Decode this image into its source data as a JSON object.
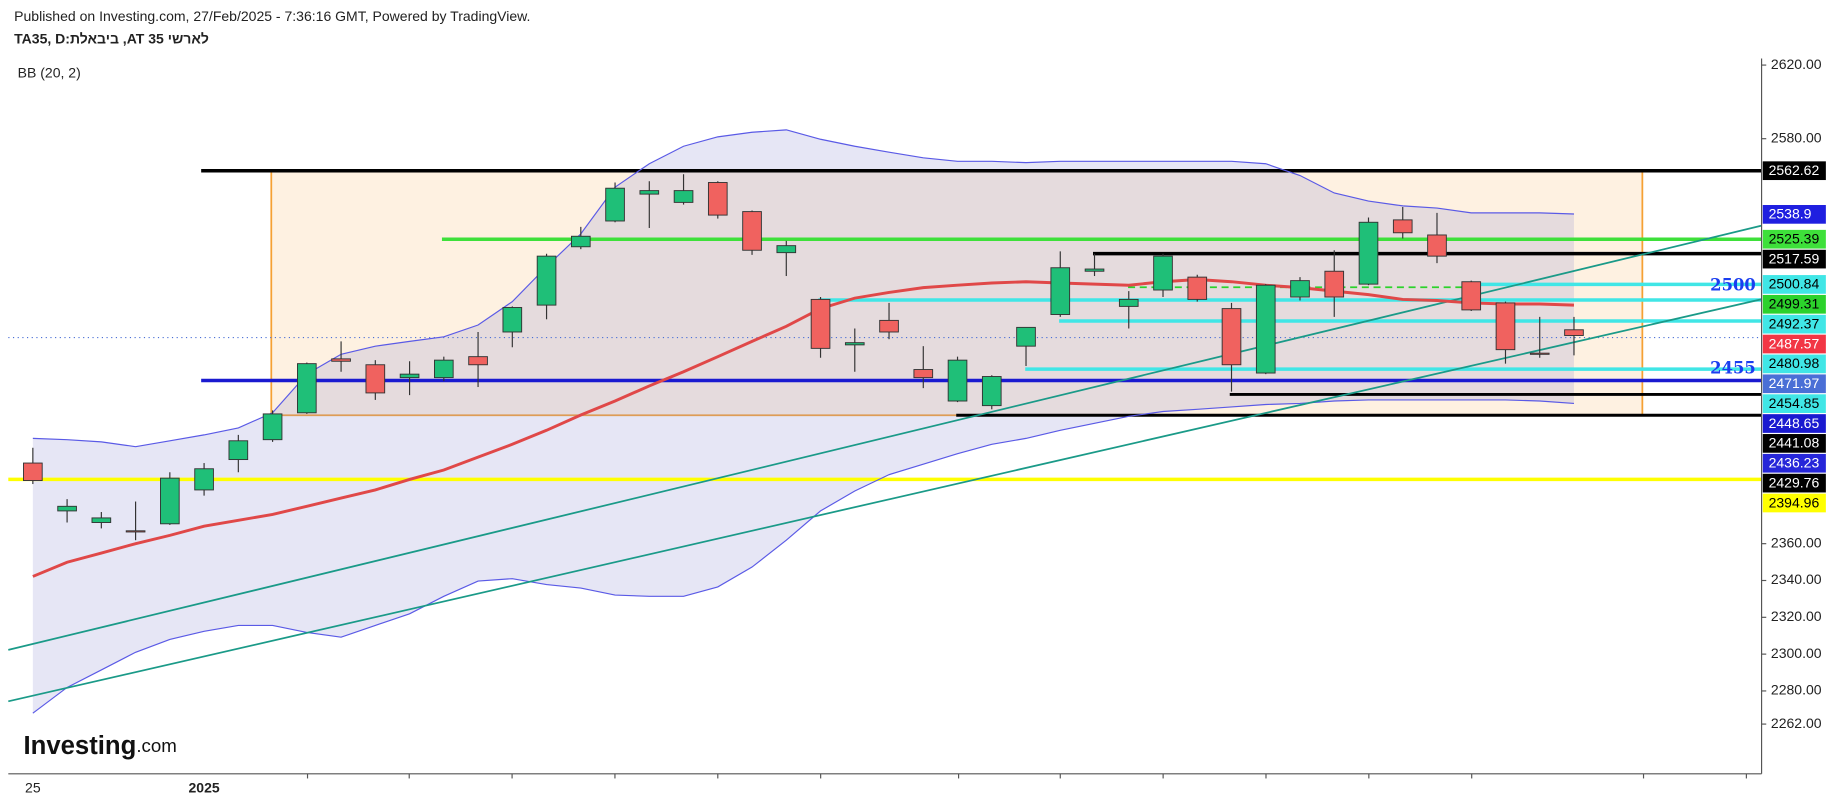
{
  "header": {
    "published": "Published on Investing.com, 27/Feb/2025 - 7:36:16 GMT, Powered by TradingView.",
    "symbol": "TA35, D:ביבאלת ,AT 35 לארשי",
    "indicator": "BB (20, 2)"
  },
  "logo": {
    "brand": "Investing",
    "suffix": ".com"
  },
  "chart_data": {
    "type": "candlestick",
    "categories": [
      "25",
      null,
      null,
      null,
      null,
      "2025",
      null,
      null,
      null,
      null,
      null,
      null,
      null,
      null,
      null,
      null,
      null,
      null,
      null,
      null,
      null,
      null,
      null,
      null,
      null,
      null,
      null,
      null,
      null,
      null,
      null,
      null,
      null,
      null,
      null,
      null,
      null,
      null,
      null,
      null,
      null,
      null,
      null,
      null,
      null,
      null
    ],
    "open": [
      2403.8,
      2377.8,
      2371.5,
      2367.0,
      2370.8,
      2389.2,
      2405.7,
      2416.5,
      2431.1,
      2460.4,
      2457.2,
      2450.2,
      2450.2,
      2461.6,
      2475.0,
      2489.6,
      2521.3,
      2535.3,
      2549.9,
      2545.4,
      2556.2,
      2540.4,
      2518.1,
      2492.7,
      2468.0,
      2481.3,
      2454.6,
      2437.5,
      2435.0,
      2467.3,
      2484.5,
      2508.0,
      2488.9,
      2497.8,
      2504.8,
      2487.7,
      2452.7,
      2494.0,
      2508.0,
      2501.0,
      2535.9,
      2527.7,
      2502.3,
      2490.8,
      2463.5,
      2476.2
    ],
    "high": [
      2412.1,
      2384.2,
      2377.2,
      2382.9,
      2398.8,
      2403.8,
      2419.1,
      2432.4,
      2458.4,
      2469.9,
      2459.7,
      2459.1,
      2461.6,
      2475.0,
      2488.9,
      2517.5,
      2532.1,
      2556.2,
      2556.9,
      2560.7,
      2556.9,
      2541.0,
      2524.5,
      2494.0,
      2476.9,
      2490.8,
      2467.3,
      2461.6,
      2451.5,
      2477.5,
      2518.8,
      2517.5,
      2497.2,
      2517.5,
      2506.1,
      2490.8,
      2501.0,
      2504.8,
      2519.4,
      2537.2,
      2542.9,
      2539.7,
      2502.9,
      2491.5,
      2483.2,
      2483.2
    ],
    "low": [
      2392.4,
      2371.5,
      2368.3,
      2361.9,
      2370.2,
      2386.1,
      2398.8,
      2415.3,
      2430.5,
      2453.4,
      2438.1,
      2440.7,
      2448.3,
      2445.1,
      2466.7,
      2481.9,
      2520.0,
      2534.6,
      2531.5,
      2544.2,
      2536.6,
      2516.9,
      2505.4,
      2461.0,
      2453.4,
      2471.1,
      2444.5,
      2436.9,
      2433.0,
      2456.5,
      2483.2,
      2505.4,
      2476.9,
      2494.0,
      2491.5,
      2442.6,
      2452.1,
      2492.1,
      2483.2,
      2500.4,
      2525.8,
      2512.4,
      2486.4,
      2457.8,
      2461.0,
      2462.3
    ],
    "close": [
      2394.3,
      2380.3,
      2374.0,
      2366.4,
      2395.6,
      2400.7,
      2415.9,
      2430.5,
      2457.8,
      2459.1,
      2441.9,
      2452.1,
      2459.7,
      2457.2,
      2488.3,
      2516.2,
      2527.0,
      2553.1,
      2551.8,
      2551.8,
      2538.5,
      2519.4,
      2521.9,
      2466.1,
      2469.2,
      2475.0,
      2450.2,
      2459.7,
      2450.8,
      2477.5,
      2509.9,
      2509.2,
      2492.7,
      2516.2,
      2492.7,
      2457.2,
      2500.4,
      2502.9,
      2494.0,
      2534.6,
      2528.9,
      2516.2,
      2487.0,
      2465.4,
      2462.9,
      2473.1
    ],
    "up_color": "#1fbf78",
    "down_color": "#f0625f",
    "bb_upper": {
      "color": "#5a5ae6",
      "values": [
        2417.2,
        2416.5,
        2415.3,
        2412.7,
        2415.9,
        2419.1,
        2422.9,
        2431.1,
        2452.1,
        2462.9,
        2467.3,
        2469.9,
        2472.4,
        2478.8,
        2491.5,
        2510.5,
        2528.3,
        2553.7,
        2566.4,
        2575.9,
        2581.0,
        2583.5,
        2584.8,
        2579.7,
        2575.9,
        2572.7,
        2569.6,
        2567.7,
        2567.7,
        2567.0,
        2567.7,
        2567.7,
        2567.7,
        2567.7,
        2567.7,
        2567.7,
        2566.4,
        2560.0,
        2550.5,
        2546.1,
        2543.5,
        2542.3,
        2539.7,
        2539.7,
        2539.7,
        2539.1
      ]
    },
    "bb_lower": {
      "color": "#5a5ae6",
      "values": [
        2267.9,
        2281.9,
        2291.4,
        2301.0,
        2308.0,
        2312.4,
        2315.6,
        2315.6,
        2311.8,
        2309.2,
        2315.6,
        2321.9,
        2331.4,
        2339.7,
        2341.0,
        2337.8,
        2335.9,
        2332.1,
        2331.4,
        2331.4,
        2336.5,
        2347.3,
        2361.9,
        2377.8,
        2388.6,
        2397.5,
        2403.2,
        2408.9,
        2414.0,
        2417.2,
        2421.6,
        2425.4,
        2429.2,
        2431.8,
        2433.0,
        2434.3,
        2435.6,
        2436.2,
        2437.5,
        2438.1,
        2438.1,
        2438.1,
        2438.1,
        2438.1,
        2437.5,
        2436.2
      ]
    },
    "bb_basis": {
      "color": "#e04848",
      "values": [
        2342.2,
        2349.9,
        2354.9,
        2360.0,
        2364.5,
        2369.5,
        2372.7,
        2375.9,
        2380.3,
        2384.8,
        2389.2,
        2394.9,
        2400.0,
        2407.0,
        2414.0,
        2421.6,
        2429.9,
        2437.5,
        2445.7,
        2453.4,
        2461.6,
        2469.9,
        2478.1,
        2487.7,
        2493.4,
        2496.5,
        2499.1,
        2500.4,
        2501.6,
        2502.3,
        2501.6,
        2501.0,
        2500.4,
        2502.3,
        2503.5,
        2502.3,
        2500.4,
        2499.1,
        2497.2,
        2495.3,
        2492.7,
        2492.1,
        2490.8,
        2490.2,
        2490.2,
        2489.6
      ]
    },
    "bb_fill": "#8c8cd2",
    "box_color": "#f5a033",
    "ylim": [
      2235,
      2623.6
    ],
    "yticks": [
      {
        "value": 2620,
        "label": "2620.00"
      },
      {
        "value": 2580,
        "label": "2580.00"
      },
      {
        "value": 2360,
        "label": "2360.00"
      },
      {
        "value": 2340,
        "label": "2340.00"
      },
      {
        "value": 2320,
        "label": "2320.00"
      },
      {
        "value": 2300,
        "label": "2300.00"
      },
      {
        "value": 2280,
        "label": "2280.00"
      },
      {
        "value": 2262,
        "label": "2262.00"
      }
    ],
    "price_labels": [
      {
        "value": 2562.62,
        "color": "#000000",
        "text_color": "#ffffff"
      },
      {
        "value": 2538.9,
        "color": "#1f1fe0",
        "text_color": "#ffffff"
      },
      {
        "value": 2525.39,
        "color": "#3ee03a",
        "text_color": "#000000"
      },
      {
        "value": 2517.59,
        "color": "#000000",
        "text_color": "#ffffff"
      },
      {
        "value": 2500.84,
        "color": "#40e6e6",
        "text_color": "#000000"
      },
      {
        "value": 2499.31,
        "color": "#2cd22c",
        "text_color": "#000000"
      },
      {
        "value": 2492.37,
        "color": "#40e6e6",
        "text_color": "#000000"
      },
      {
        "value": 2487.57,
        "color": "#f23645",
        "text_color": "#ffffff"
      },
      {
        "value": 2480.98,
        "color": "#40e6e6",
        "text_color": "#000000"
      },
      {
        "value": 2471.97,
        "color": "#4a6fd6",
        "text_color": "#ffffff"
      },
      {
        "value": 2454.85,
        "color": "#40e6e6",
        "text_color": "#000000"
      },
      {
        "value": 2448.65,
        "color": "#1a1ad0",
        "text_color": "#ffffff"
      },
      {
        "value": 2441.08,
        "color": "#000000",
        "text_color": "#ffffff"
      },
      {
        "value": 2436.23,
        "color": "#2626d9",
        "text_color": "#ffffff"
      },
      {
        "value": 2429.76,
        "color": "#000000",
        "text_color": "#ffffff"
      },
      {
        "value": 2394.96,
        "color": "#ffff00",
        "text_color": "#000000"
      }
    ],
    "level_annotations": [
      2500,
      2455
    ],
    "annotation_color": "#1a3ef0"
  }
}
